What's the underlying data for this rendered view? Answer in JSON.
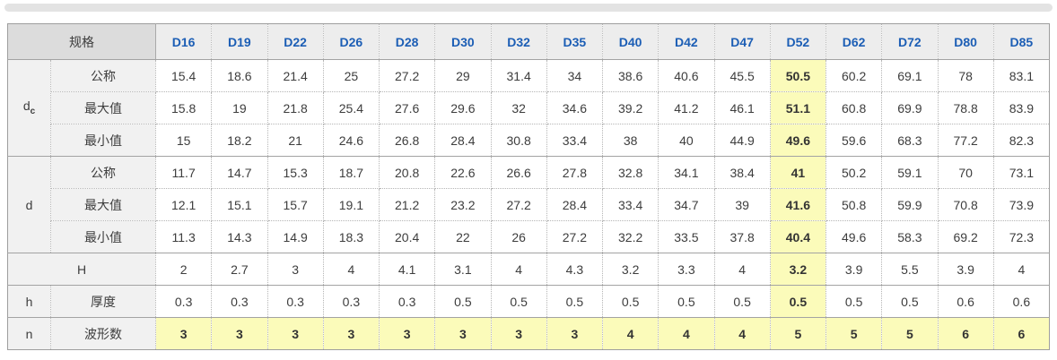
{
  "scrollbar": {
    "orientation": "horizontal"
  },
  "table": {
    "spec_label": "规格",
    "columns": [
      "D16",
      "D19",
      "D22",
      "D26",
      "D28",
      "D30",
      "D32",
      "D35",
      "D40",
      "D42",
      "D47",
      "D52",
      "D62",
      "D72",
      "D80",
      "D85"
    ],
    "highlight_column": "D52",
    "highlight_column_index": 11,
    "rows": [
      {
        "group": "dc",
        "group_main": "d",
        "group_subscript": "c",
        "group_span": 3,
        "sub": "公称",
        "values": [
          "15.4",
          "18.6",
          "21.4",
          "25",
          "27.2",
          "29",
          "31.4",
          "34",
          "38.6",
          "40.6",
          "45.5",
          "50.5",
          "60.2",
          "69.1",
          "78",
          "83.1"
        ]
      },
      {
        "sub": "最大值",
        "values": [
          "15.8",
          "19",
          "21.8",
          "25.4",
          "27.6",
          "29.6",
          "32",
          "34.6",
          "39.2",
          "41.2",
          "46.1",
          "51.1",
          "60.8",
          "69.9",
          "78.8",
          "83.9"
        ]
      },
      {
        "sub": "最小值",
        "values": [
          "15",
          "18.2",
          "21",
          "24.6",
          "26.8",
          "28.4",
          "30.8",
          "33.4",
          "38",
          "40",
          "44.9",
          "49.6",
          "59.6",
          "68.3",
          "77.2",
          "82.3"
        ]
      },
      {
        "group": "d",
        "group_main": "d",
        "group_span": 3,
        "sub": "公称",
        "values": [
          "11.7",
          "14.7",
          "15.3",
          "18.7",
          "20.8",
          "22.6",
          "26.6",
          "27.8",
          "32.8",
          "34.1",
          "38.4",
          "41",
          "50.2",
          "59.1",
          "70",
          "73.1"
        ]
      },
      {
        "sub": "最大值",
        "values": [
          "12.1",
          "15.1",
          "15.7",
          "19.1",
          "21.2",
          "23.2",
          "27.2",
          "28.4",
          "33.4",
          "34.7",
          "39",
          "41.6",
          "50.8",
          "59.9",
          "70.8",
          "73.9"
        ]
      },
      {
        "sub": "最小值",
        "values": [
          "11.3",
          "14.3",
          "14.9",
          "18.3",
          "20.4",
          "22",
          "26",
          "27.2",
          "32.2",
          "33.5",
          "37.8",
          "40.4",
          "49.6",
          "58.3",
          "69.2",
          "72.3"
        ]
      },
      {
        "group": "H",
        "group_main": "H",
        "merged_label": true,
        "values": [
          "2",
          "2.7",
          "3",
          "4",
          "4.1",
          "3.1",
          "4",
          "4.3",
          "3.2",
          "3.3",
          "4",
          "3.2",
          "3.9",
          "5.5",
          "3.9",
          "4"
        ]
      },
      {
        "group": "h",
        "group_main": "h",
        "sub": "厚度",
        "values": [
          "0.3",
          "0.3",
          "0.3",
          "0.3",
          "0.3",
          "0.5",
          "0.5",
          "0.5",
          "0.5",
          "0.5",
          "0.5",
          "0.5",
          "0.5",
          "0.5",
          "0.6",
          "0.6"
        ]
      },
      {
        "group": "n",
        "group_main": "n",
        "sub": "波形数",
        "highlight": true,
        "values": [
          "3",
          "3",
          "3",
          "3",
          "3",
          "3",
          "3",
          "3",
          "4",
          "4",
          "4",
          "5",
          "5",
          "5",
          "6",
          "6"
        ]
      }
    ],
    "colors": {
      "header_text": "#1c5eb5",
      "header_bg": "#ededed",
      "spec_cell_bg": "#dcdcdc",
      "label_col_bg": "#f1f1f1",
      "highlight_bg": "#fbfbba",
      "body_text": "#3d3d3d"
    },
    "layout": {
      "label_col1_width": 48,
      "label_col2_width": 117
    }
  }
}
